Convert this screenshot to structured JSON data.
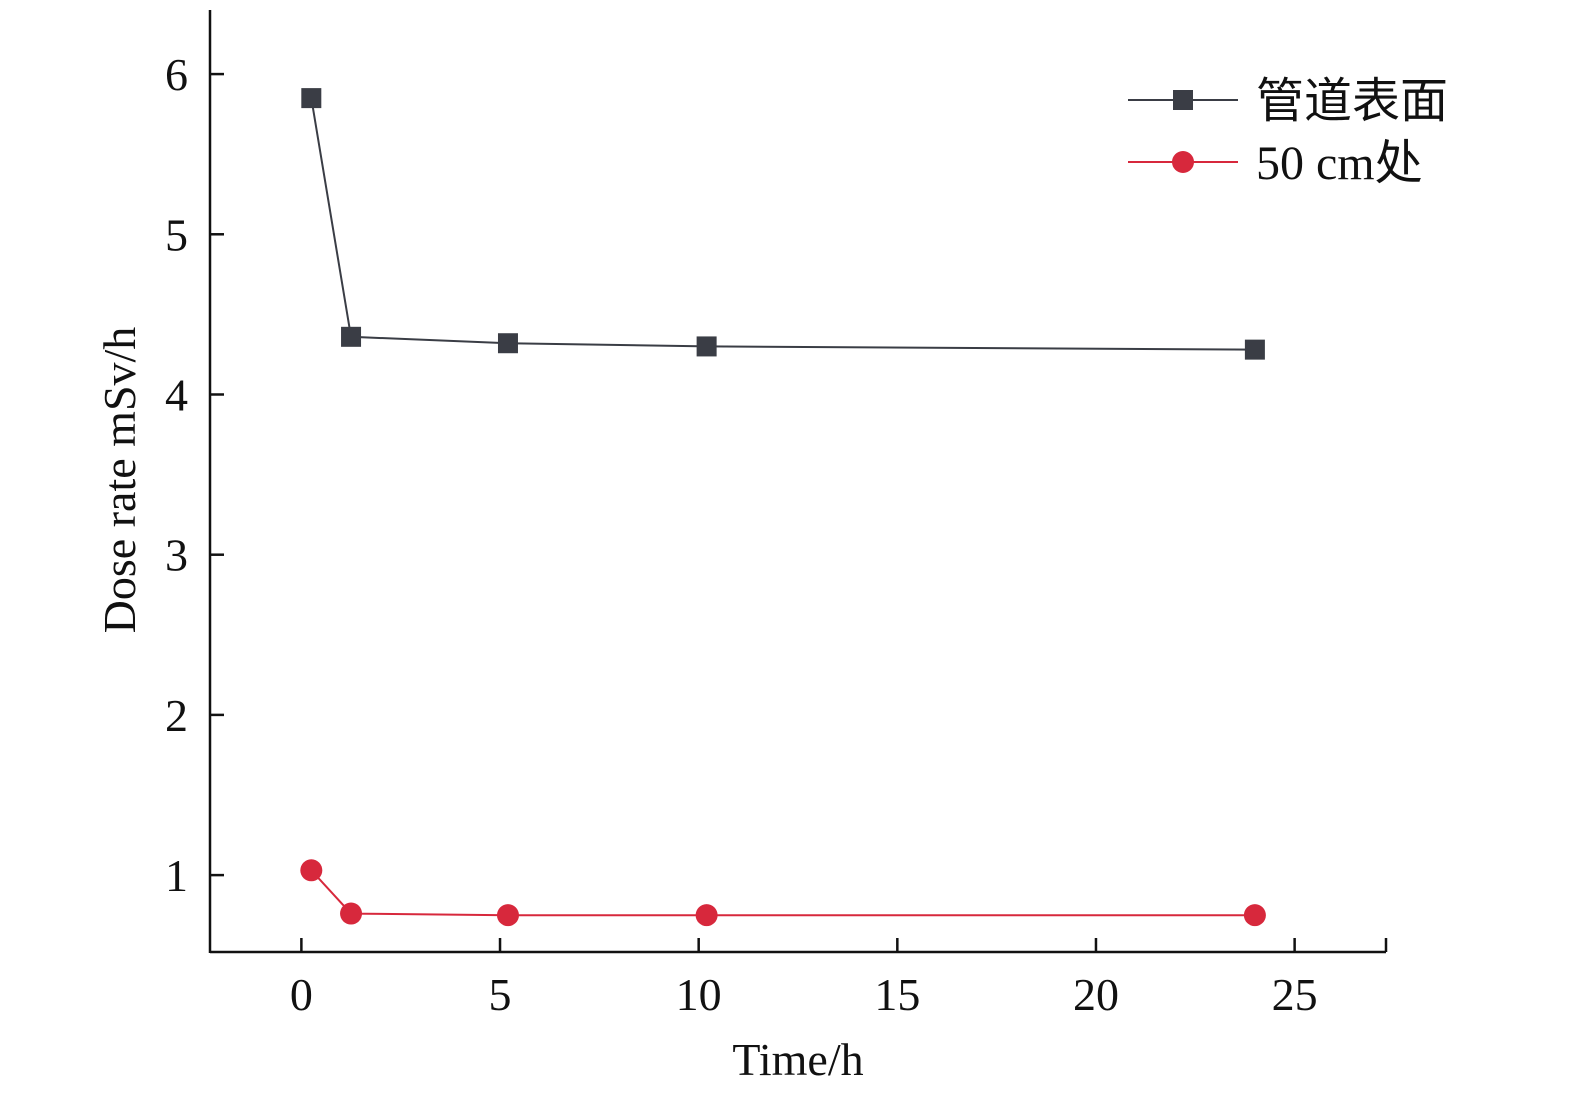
{
  "chart_data": {
    "type": "line",
    "title": "",
    "xlabel": "Time/h",
    "ylabel": "Dose rate mSv/h",
    "xlim": [
      -2.3,
      27.3
    ],
    "ylim": [
      0.52,
      6.4
    ],
    "xticks": [
      0,
      5,
      10,
      15,
      20,
      25
    ],
    "yticks": [
      1,
      2,
      3,
      4,
      5,
      6
    ],
    "grid": false,
    "legend_position": "top-right",
    "series": [
      {
        "name": "管道表面",
        "color": "#3a3d45",
        "marker": "square",
        "x": [
          0.25,
          1.25,
          5.2,
          10.2,
          24.0
        ],
        "y": [
          5.85,
          4.36,
          4.32,
          4.3,
          4.28
        ]
      },
      {
        "name": "50 cm处",
        "color": "#d7283c",
        "marker": "circle",
        "x": [
          0.25,
          1.25,
          5.2,
          10.2,
          24.0
        ],
        "y": [
          1.03,
          0.76,
          0.75,
          0.75,
          0.75
        ]
      }
    ]
  }
}
